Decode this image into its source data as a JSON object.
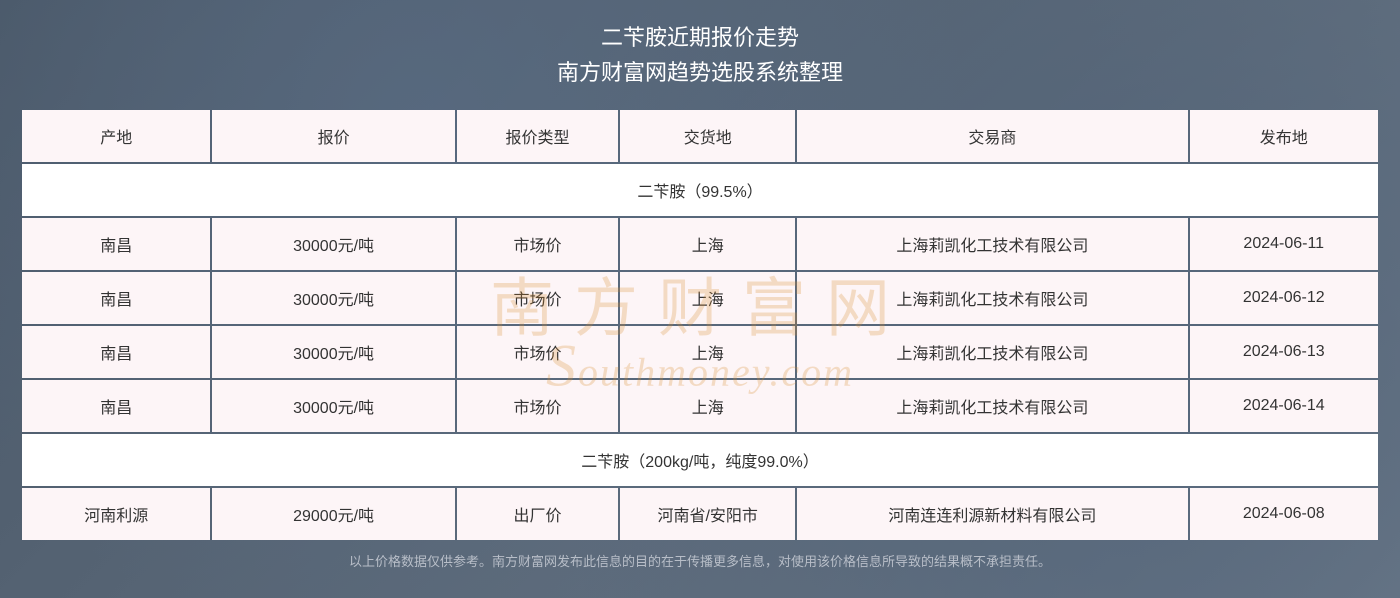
{
  "title": {
    "main": "二苄胺近期报价走势",
    "sub": "南方财富网趋势选股系统整理"
  },
  "table": {
    "columns": [
      "产地",
      "报价",
      "报价类型",
      "交货地",
      "交易商",
      "发布地"
    ],
    "column_widths_pct": [
      14,
      18,
      12,
      13,
      29,
      14
    ],
    "sections": [
      {
        "header": "二苄胺（99.5%）",
        "rows": [
          [
            "南昌",
            "30000元/吨",
            "市场价",
            "上海",
            "上海莉凯化工技术有限公司",
            "2024-06-11"
          ],
          [
            "南昌",
            "30000元/吨",
            "市场价",
            "上海",
            "上海莉凯化工技术有限公司",
            "2024-06-12"
          ],
          [
            "南昌",
            "30000元/吨",
            "市场价",
            "上海",
            "上海莉凯化工技术有限公司",
            "2024-06-13"
          ],
          [
            "南昌",
            "30000元/吨",
            "市场价",
            "上海",
            "上海莉凯化工技术有限公司",
            "2024-06-14"
          ]
        ]
      },
      {
        "header": "二苄胺（200kg/吨，纯度99.0%）",
        "rows": [
          [
            "河南利源",
            "29000元/吨",
            "出厂价",
            "河南省/安阳市",
            "河南连连利源新材料有限公司",
            "2024-06-08"
          ]
        ]
      }
    ]
  },
  "disclaimer": "以上价格数据仅供参考。南方财富网发布此信息的目的在于传播更多信息，对使用该价格信息所导致的结果概不承担责任。",
  "watermark": {
    "cn": "南方财富网",
    "en_prefix": "S",
    "en_rest": "outhmoney.com"
  },
  "style": {
    "cell_bg": "#fdf5f7",
    "section_bg": "#ffffff",
    "text_color": "#333333",
    "title_color": "#ffffff",
    "disclaimer_color": "#b8bec8",
    "watermark_color": "#d98c2e",
    "body_bg": "#5a6878",
    "font_size_title": 22,
    "font_size_cell": 16,
    "font_size_disclaimer": 13,
    "border_spacing": 2
  }
}
